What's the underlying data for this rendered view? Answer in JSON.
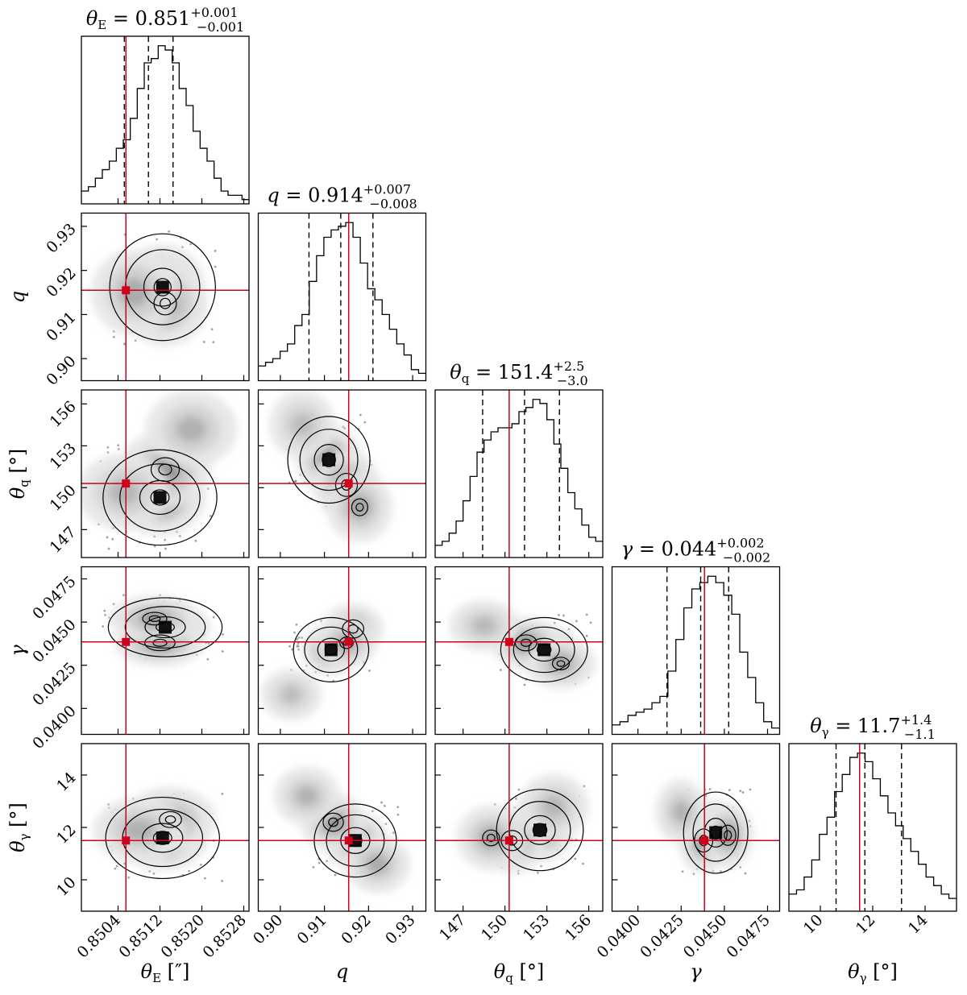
{
  "chart_data": {
    "type": "corner",
    "parameters": [
      {
        "id": "thetaE",
        "title_symbol": "θ",
        "title_sub": "E",
        "title_value": "0.851",
        "title_plus": "+0.001",
        "title_minus": "−0.001",
        "axis_symbol": "θ",
        "axis_sub": "E",
        "axis_unit": "[″]",
        "range": [
          0.8497,
          0.8529
        ],
        "ticks": [
          0.8504,
          0.8512,
          0.852,
          0.8528
        ],
        "tick_labels": [
          "0.8504",
          "0.8512",
          "0.8520",
          "0.8528"
        ],
        "truth": 0.85055,
        "quantiles": [
          0.85052,
          0.85098,
          0.85145
        ],
        "hist": [
          3,
          4,
          6,
          8,
          10,
          13,
          15,
          20,
          27,
          33,
          34,
          37,
          36,
          33,
          27,
          23,
          17,
          13,
          10,
          6,
          3,
          2,
          2,
          1
        ]
      },
      {
        "id": "q",
        "title_symbol": "q",
        "title_sub": "",
        "title_value": "0.914",
        "title_plus": "+0.007",
        "title_minus": "−0.008",
        "axis_symbol": "q",
        "axis_sub": "",
        "axis_unit": "",
        "range": [
          0.895,
          0.933
        ],
        "ticks": [
          0.9,
          0.91,
          0.92,
          0.93
        ],
        "tick_labels": [
          "0.90",
          "0.91",
          "0.92",
          "0.93"
        ],
        "truth": 0.9155,
        "quantiles": [
          0.9065,
          0.9137,
          0.921
        ],
        "hist": [
          4,
          5,
          6,
          8,
          10,
          15,
          18,
          27,
          34,
          39,
          41,
          42,
          43,
          39,
          32,
          25,
          22,
          18,
          14,
          10,
          7,
          3,
          2
        ]
      },
      {
        "id": "thetaq",
        "title_symbol": "θ",
        "title_sub": "q",
        "title_value": "151.4",
        "title_plus": "+2.5",
        "title_minus": "−3.0",
        "axis_symbol": "θ",
        "axis_sub": "q",
        "axis_unit": "[°]",
        "range": [
          145.0,
          157.0
        ],
        "ticks": [
          147,
          150,
          153,
          156
        ],
        "tick_labels": [
          "147",
          "150",
          "153",
          "156"
        ],
        "truth": 150.3,
        "quantiles": [
          148.4,
          151.4,
          153.9
        ],
        "hist": [
          3,
          4,
          6,
          9,
          14,
          20,
          26,
          29,
          31,
          32,
          32,
          33,
          36,
          37,
          39,
          38,
          34,
          28,
          22,
          16,
          12,
          8,
          5,
          4
        ]
      },
      {
        "id": "gamma",
        "title_symbol": "γ",
        "title_sub": "",
        "title_value": "0.044",
        "title_plus": "+0.002",
        "title_minus": "−0.002",
        "axis_symbol": "γ",
        "axis_sub": "",
        "axis_unit": "",
        "range": [
          0.0385,
          0.0482
        ],
        "ticks": [
          0.04,
          0.0425,
          0.045,
          0.0475
        ],
        "tick_labels": [
          "0.0400",
          "0.0425",
          "0.0450",
          "0.0475"
        ],
        "truth": 0.04385,
        "quantiles": [
          0.04168,
          0.04363,
          0.04525
        ],
        "hist": [
          3,
          4,
          6,
          7,
          8,
          10,
          12,
          20,
          30,
          40,
          46,
          48,
          50,
          48,
          44,
          38,
          26,
          18,
          10,
          4,
          2
        ]
      },
      {
        "id": "thetagamma",
        "title_symbol": "θ",
        "title_sub": "γ",
        "title_value": "11.7",
        "title_plus": "+1.4",
        "title_minus": "−1.1",
        "axis_symbol": "θ",
        "axis_sub": "γ",
        "axis_unit": "[°]",
        "range": [
          8.8,
          15.2
        ],
        "ticks": [
          10,
          12,
          14
        ],
        "tick_labels": [
          "10",
          "12",
          "14"
        ],
        "truth": 11.5,
        "quantiles": [
          10.6,
          11.7,
          13.1
        ],
        "hist": [
          4,
          5,
          8,
          12,
          18,
          22,
          28,
          32,
          36,
          37,
          35,
          31,
          27,
          23,
          20,
          17,
          14,
          11,
          8,
          6,
          4,
          3
        ]
      }
    ],
    "pairs": [
      {
        "x": "thetaE",
        "y": "q",
        "centers": [
          [
            0.85125,
            0.9162,
            1.0
          ],
          [
            0.8513,
            0.9125,
            0.6
          ],
          [
            0.8507,
            0.915,
            0.45
          ]
        ],
        "spread": [
          0.00065,
          0.0078
        ]
      },
      {
        "x": "thetaE",
        "y": "thetaq",
        "centers": [
          [
            0.8512,
            149.3,
            1.0
          ],
          [
            0.8513,
            151.3,
            0.7
          ],
          [
            0.8518,
            154.2,
            0.4
          ],
          [
            0.8505,
            149.7,
            0.35
          ]
        ],
        "spread": [
          0.0007,
          2.2
        ]
      },
      {
        "x": "q",
        "y": "thetaq",
        "centers": [
          [
            0.911,
            152.0,
            1.0
          ],
          [
            0.915,
            150.2,
            0.75
          ],
          [
            0.918,
            148.6,
            0.55
          ],
          [
            0.905,
            154.5,
            0.3
          ]
        ],
        "spread": [
          0.006,
          2.0
        ]
      },
      {
        "x": "thetaE",
        "y": "gamma",
        "centers": [
          [
            0.8513,
            0.0447,
            1.0
          ],
          [
            0.8512,
            0.0438,
            0.75
          ],
          [
            0.8511,
            0.0452,
            0.6
          ]
        ],
        "spread": [
          0.0007,
          0.0011
        ]
      },
      {
        "x": "q",
        "y": "gamma",
        "centers": [
          [
            0.9115,
            0.0434,
            1.0
          ],
          [
            0.9165,
            0.0446,
            0.8
          ],
          [
            0.915,
            0.0438,
            0.5
          ],
          [
            0.9025,
            0.0408,
            0.3
          ]
        ],
        "spread": [
          0.0055,
          0.0012
        ]
      },
      {
        "x": "thetaq",
        "y": "gamma",
        "centers": [
          [
            152.8,
            0.0434,
            1.0
          ],
          [
            151.5,
            0.0438,
            0.7
          ],
          [
            154.0,
            0.0426,
            0.55
          ],
          [
            148.5,
            0.0448,
            0.35
          ]
        ],
        "spread": [
          2.0,
          0.0012
        ]
      },
      {
        "x": "thetaE",
        "y": "thetagamma",
        "centers": [
          [
            0.85125,
            11.6,
            1.0
          ],
          [
            0.8514,
            12.3,
            0.55
          ],
          [
            0.8508,
            11.9,
            0.4
          ]
        ],
        "spread": [
          0.0007,
          1.0
        ]
      },
      {
        "x": "q",
        "y": "thetagamma",
        "centers": [
          [
            0.917,
            11.5,
            1.0
          ],
          [
            0.912,
            12.2,
            0.7
          ],
          [
            0.906,
            13.2,
            0.4
          ],
          [
            0.922,
            10.6,
            0.45
          ]
        ],
        "spread": [
          0.006,
          0.9
        ]
      },
      {
        "x": "thetaq",
        "y": "thetagamma",
        "centers": [
          [
            152.5,
            11.9,
            1.0
          ],
          [
            150.5,
            11.5,
            0.7
          ],
          [
            149.0,
            11.6,
            0.55
          ],
          [
            153.5,
            12.8,
            0.35
          ]
        ],
        "spread": [
          2.0,
          1.0
        ]
      },
      {
        "x": "gamma",
        "y": "thetagamma",
        "centers": [
          [
            0.0445,
            11.8,
            1.0
          ],
          [
            0.0438,
            11.5,
            0.8
          ],
          [
            0.0452,
            11.7,
            0.7
          ],
          [
            0.0425,
            12.6,
            0.4
          ]
        ],
        "spread": [
          0.0012,
          1.0
        ]
      }
    ],
    "truth_color": "#d0021b",
    "hist_color": "#000000"
  }
}
